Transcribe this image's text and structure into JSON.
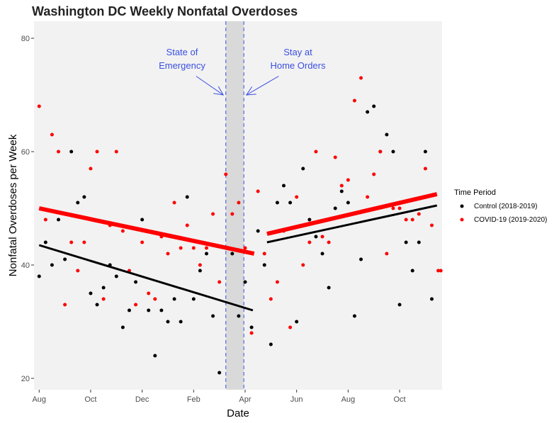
{
  "chart_data": {
    "type": "scatter",
    "title": "Washington DC Weekly Nonfatal Overdoses",
    "xlabel": "Date",
    "ylabel": "Nonfatal Overdoses per Week",
    "ylim": [
      18,
      83
    ],
    "xlim_months": [
      -0.2,
      15.65
    ],
    "x_unit": "months since Aug 1",
    "y_ticks": [
      20,
      40,
      60,
      80
    ],
    "x_ticks": [
      {
        "label": "Aug",
        "month": 0
      },
      {
        "label": "Oct",
        "month": 2
      },
      {
        "label": "Dec",
        "month": 4
      },
      {
        "label": "Feb",
        "month": 6
      },
      {
        "label": "Apr",
        "month": 8
      },
      {
        "label": "Jun",
        "month": 10
      },
      {
        "label": "Aug",
        "month": 12
      },
      {
        "label": "Oct",
        "month": 14
      }
    ],
    "grid": false,
    "colors": {
      "panel": "#f2f2f2",
      "control": "#000000",
      "covid": "#ff0000",
      "annotation": "#3a4fe0",
      "band": "#d9d9d9"
    },
    "shaded_band": {
      "start": 7.25,
      "end": 7.95
    },
    "vlines": [
      7.25,
      7.95
    ],
    "annotations": [
      {
        "lines": [
          "State of",
          "Emergency"
        ],
        "text_month": 5.55,
        "text_y": [
          77,
          74.6
        ],
        "arrow_from": [
          6.1,
          73.3
        ],
        "arrow_to": [
          7.15,
          70
        ]
      },
      {
        "lines": [
          "Stay at",
          "Home Orders"
        ],
        "text_month": 10.05,
        "text_y": [
          77,
          74.6
        ],
        "arrow_from": [
          9.3,
          73.3
        ],
        "arrow_to": [
          8.05,
          70
        ]
      }
    ],
    "legend": {
      "title": "Time Period",
      "position": "right",
      "entries": [
        {
          "label": "Control (2018-2019)",
          "series": "control"
        },
        {
          "label": "COVID-19 (2019-2020)",
          "series": "covid"
        }
      ]
    },
    "series": [
      {
        "name": "Control (2018-2019)",
        "key": "control",
        "points": [
          [
            0.0,
            38
          ],
          [
            0.25,
            44
          ],
          [
            0.5,
            40
          ],
          [
            0.75,
            48
          ],
          [
            1.0,
            41
          ],
          [
            1.25,
            60
          ],
          [
            1.5,
            51
          ],
          [
            1.75,
            52
          ],
          [
            2.0,
            35
          ],
          [
            2.25,
            33
          ],
          [
            2.5,
            36
          ],
          [
            2.75,
            40
          ],
          [
            3.0,
            38
          ],
          [
            3.25,
            29
          ],
          [
            3.5,
            32
          ],
          [
            3.75,
            37
          ],
          [
            4.0,
            48
          ],
          [
            4.25,
            32
          ],
          [
            4.5,
            24
          ],
          [
            4.75,
            32
          ],
          [
            5.0,
            30
          ],
          [
            5.25,
            34
          ],
          [
            5.5,
            30
          ],
          [
            5.75,
            52
          ],
          [
            6.0,
            34
          ],
          [
            6.25,
            39
          ],
          [
            6.5,
            42
          ],
          [
            6.75,
            31
          ],
          [
            7.0,
            21
          ],
          [
            7.25,
            43
          ],
          [
            7.5,
            42
          ],
          [
            7.75,
            31
          ],
          [
            8.0,
            37
          ],
          [
            8.25,
            29
          ],
          [
            8.5,
            46
          ],
          [
            8.75,
            40
          ],
          [
            9.0,
            26
          ],
          [
            9.25,
            51
          ],
          [
            9.5,
            54
          ],
          [
            9.75,
            51
          ],
          [
            10.0,
            30
          ],
          [
            10.25,
            57
          ],
          [
            10.5,
            48
          ],
          [
            10.75,
            45
          ],
          [
            11.0,
            42
          ],
          [
            11.25,
            36
          ],
          [
            11.5,
            50
          ],
          [
            11.75,
            53
          ],
          [
            12.0,
            51
          ],
          [
            12.25,
            31
          ],
          [
            12.5,
            41
          ],
          [
            12.75,
            67
          ],
          [
            13.0,
            68
          ],
          [
            13.25,
            60
          ],
          [
            13.5,
            63
          ],
          [
            13.75,
            60
          ],
          [
            14.0,
            33
          ],
          [
            14.25,
            44
          ],
          [
            14.5,
            39
          ],
          [
            14.75,
            44
          ],
          [
            15.0,
            60
          ],
          [
            15.25,
            34
          ]
        ],
        "fit_segments": [
          {
            "x": [
              0.0,
              8.3
            ],
            "y": [
              43.5,
              32
            ]
          },
          {
            "x": [
              8.85,
              15.45
            ],
            "y": [
              44,
              50.5
            ]
          }
        ]
      },
      {
        "name": "COVID-19 (2019-2020)",
        "key": "covid",
        "points": [
          [
            0.0,
            68
          ],
          [
            0.25,
            48
          ],
          [
            0.5,
            63
          ],
          [
            0.75,
            60
          ],
          [
            1.0,
            33
          ],
          [
            1.25,
            44
          ],
          [
            1.5,
            39
          ],
          [
            1.75,
            44
          ],
          [
            2.0,
            57
          ],
          [
            2.25,
            60
          ],
          [
            2.5,
            34
          ],
          [
            2.75,
            47
          ],
          [
            3.0,
            60
          ],
          [
            3.25,
            46
          ],
          [
            3.5,
            39
          ],
          [
            3.75,
            33
          ],
          [
            4.0,
            44
          ],
          [
            4.25,
            35
          ],
          [
            4.5,
            34
          ],
          [
            4.75,
            45
          ],
          [
            5.0,
            42
          ],
          [
            5.25,
            51
          ],
          [
            5.5,
            43
          ],
          [
            5.75,
            47
          ],
          [
            6.0,
            43
          ],
          [
            6.25,
            40
          ],
          [
            6.5,
            43
          ],
          [
            6.75,
            49
          ],
          [
            7.0,
            37
          ],
          [
            7.25,
            56
          ],
          [
            7.5,
            49
          ],
          [
            7.75,
            51
          ],
          [
            8.0,
            43
          ],
          [
            8.25,
            28
          ],
          [
            8.5,
            53
          ],
          [
            8.75,
            42
          ],
          [
            9.0,
            34
          ],
          [
            9.25,
            37
          ],
          [
            9.5,
            46
          ],
          [
            9.75,
            29
          ],
          [
            10.0,
            52
          ],
          [
            10.25,
            40
          ],
          [
            10.5,
            44
          ],
          [
            10.75,
            60
          ],
          [
            11.0,
            45
          ],
          [
            11.25,
            44
          ],
          [
            11.5,
            59
          ],
          [
            11.75,
            54
          ],
          [
            12.0,
            55
          ],
          [
            12.25,
            69
          ],
          [
            12.5,
            73
          ],
          [
            12.75,
            52
          ],
          [
            13.0,
            56
          ],
          [
            13.25,
            60
          ],
          [
            13.5,
            42
          ],
          [
            13.75,
            50
          ],
          [
            14.0,
            50
          ],
          [
            14.25,
            48
          ],
          [
            14.5,
            48
          ],
          [
            14.75,
            49
          ],
          [
            15.0,
            57
          ],
          [
            15.25,
            47
          ],
          [
            15.5,
            39
          ],
          [
            15.6,
            39
          ]
        ],
        "fit_segments": [
          {
            "x": [
              0.0,
              8.35
            ],
            "y": [
              50,
              42
            ]
          },
          {
            "x": [
              8.85,
              15.45
            ],
            "y": [
              45.5,
              52.5
            ]
          }
        ]
      }
    ]
  }
}
